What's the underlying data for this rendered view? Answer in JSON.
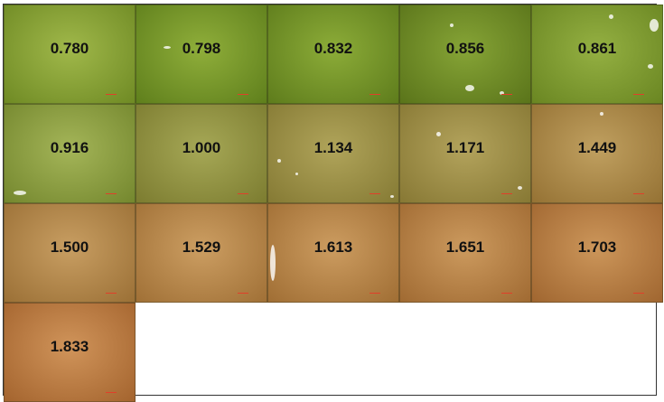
{
  "tiles": [
    {
      "value": "0.780",
      "color_center": "#a0b84a",
      "color_edge": "#6f8a24"
    },
    {
      "value": "0.798",
      "color_center": "#8fae3a",
      "color_edge": "#5f7f1c"
    },
    {
      "value": "0.832",
      "color_center": "#8cac38",
      "color_edge": "#5e7c1c"
    },
    {
      "value": "0.856",
      "color_center": "#86a436",
      "color_edge": "#5a741a"
    },
    {
      "value": "0.861",
      "color_center": "#94b042",
      "color_edge": "#6a8622"
    },
    {
      "value": "0.916",
      "color_center": "#a4b558",
      "color_edge": "#74872e"
    },
    {
      "value": "1.000",
      "color_center": "#a6a856",
      "color_edge": "#7c7c30"
    },
    {
      "value": "1.134",
      "color_center": "#b0a45a",
      "color_edge": "#857a34"
    },
    {
      "value": "1.171",
      "color_center": "#b3a35c",
      "color_edge": "#877834"
    },
    {
      "value": "1.449",
      "color_center": "#c0a060",
      "color_edge": "#957234"
    },
    {
      "value": "1.500",
      "color_center": "#c89e62",
      "color_edge": "#9b7036"
    },
    {
      "value": "1.529",
      "color_center": "#cc9e62",
      "color_edge": "#a07036"
    },
    {
      "value": "1.613",
      "color_center": "#cc9c60",
      "color_edge": "#a06e34"
    },
    {
      "value": "1.651",
      "color_center": "#cc9a5e",
      "color_edge": "#a06a32"
    },
    {
      "value": "1.703",
      "color_center": "#cc965a",
      "color_edge": "#a06630"
    },
    {
      "value": "1.833",
      "color_center": "#d0945a",
      "color_edge": "#a4642e"
    }
  ]
}
